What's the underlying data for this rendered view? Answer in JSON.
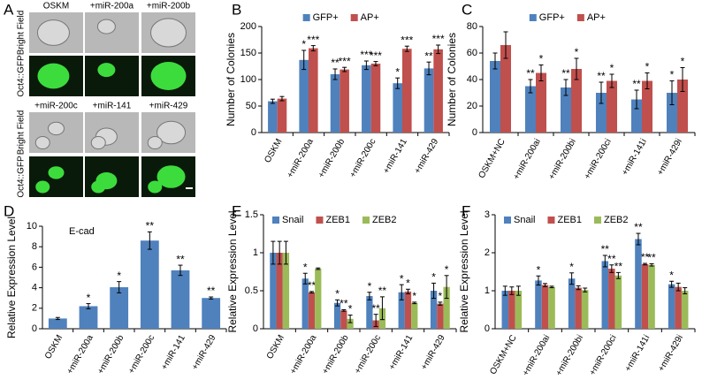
{
  "panel_a": {
    "panel": "A",
    "columns_top": [
      "OSKM",
      "+miR-200a",
      "+miR-200b"
    ],
    "columns_bottom": [
      "+miR-200c",
      "+miR-141",
      "+miR-429"
    ],
    "row_labels": [
      "Bright Field",
      "Oct4::GFP",
      "Bright Field",
      "Oct4::GFP"
    ]
  },
  "chart_data": [
    {
      "type": "bar",
      "panel": "B",
      "ylabel": "Number of Colonies",
      "categories": [
        "OSKM",
        "+miR-200a",
        "+miR-200b",
        "+miR-200c",
        "+miR-141",
        "+miR-429"
      ],
      "series": [
        {
          "name": "GFP+",
          "color": "#4f81bd",
          "values": [
            59,
            137,
            110,
            127,
            93,
            121
          ],
          "errors": [
            4,
            18,
            10,
            8,
            10,
            12
          ],
          "significance": [
            null,
            "*",
            "**",
            "***",
            "*",
            "**"
          ]
        },
        {
          "name": "AP+",
          "color": "#c0504d",
          "values": [
            64,
            159,
            119,
            130,
            158,
            157
          ],
          "errors": [
            4,
            5,
            4,
            4,
            5,
            8
          ],
          "significance": [
            null,
            "***",
            "***",
            "***",
            "***",
            "***"
          ]
        }
      ],
      "ylim": [
        0,
        200
      ],
      "yticks": [
        0,
        50,
        100,
        150,
        200
      ],
      "legend": "top"
    },
    {
      "type": "bar",
      "panel": "C",
      "ylabel": "Number of Colonies",
      "categories": [
        "OSKM+NC",
        "+miR-200ai",
        "+miR-200bi",
        "+miR-200ci",
        "+miR-141i",
        "+miR-429i"
      ],
      "series": [
        {
          "name": "GFP+",
          "color": "#4f81bd",
          "values": [
            54,
            35,
            34,
            30,
            25,
            30
          ],
          "errors": [
            6,
            5,
            6,
            8,
            7,
            9
          ],
          "significance": [
            null,
            "**",
            "**",
            "**",
            "**",
            "*"
          ]
        },
        {
          "name": "AP+",
          "color": "#c0504d",
          "values": [
            66,
            45,
            48,
            39,
            39,
            40
          ],
          "errors": [
            10,
            6,
            8,
            5,
            6,
            9
          ],
          "significance": [
            null,
            "*",
            "*",
            "*",
            "*",
            "*"
          ]
        }
      ],
      "ylim": [
        0,
        80
      ],
      "yticks": [
        0,
        20,
        40,
        60,
        80
      ],
      "legend": "top"
    },
    {
      "type": "bar",
      "panel": "D",
      "ylabel": "Relative Expression Level",
      "categories": [
        "OSKM",
        "+miR-200a",
        "+miR-200b",
        "+miR-200c",
        "+miR-141",
        "+miR-429"
      ],
      "series": [
        {
          "name": "E-cad",
          "color": "#4f81bd",
          "values": [
            1,
            2.2,
            4.05,
            8.6,
            5.7,
            3.0
          ],
          "errors": [
            0.1,
            0.25,
            0.55,
            0.85,
            0.5,
            0.1
          ],
          "significance": [
            null,
            "*",
            "*",
            "**",
            "**",
            "**"
          ]
        }
      ],
      "ylim": [
        0,
        10
      ],
      "yticks": [
        0,
        2,
        4,
        6,
        8,
        10
      ],
      "legend": "top-left"
    },
    {
      "type": "bar",
      "panel": "E",
      "ylabel": "Relative Expression Level",
      "categories": [
        "OSKM",
        "+miR-200a",
        "+miR-200b",
        "+miR-200c",
        "+miR-141",
        "+miR-429"
      ],
      "series": [
        {
          "name": "Snail",
          "color": "#4f81bd",
          "values": [
            1,
            0.66,
            0.34,
            0.43,
            0.48,
            0.5
          ],
          "errors": [
            0.15,
            0.07,
            0.04,
            0.05,
            0.1,
            0.1
          ],
          "significance": [
            null,
            "*",
            "*",
            "*",
            "*",
            "*"
          ]
        },
        {
          "name": "ZEB1",
          "color": "#c0504d",
          "values": [
            1,
            0.48,
            0.24,
            0.11,
            0.49,
            0.33
          ],
          "errors": [
            0.15,
            0.01,
            0.01,
            0.08,
            0.03,
            0.02
          ],
          "significance": [
            null,
            "**",
            "**",
            "**",
            "*",
            "*"
          ]
        },
        {
          "name": "ZEB2",
          "color": "#9bbb59",
          "values": [
            1,
            0.79,
            0.13,
            0.27,
            0.34,
            0.55
          ],
          "errors": [
            0.15,
            0.01,
            0.05,
            0.15,
            0.01,
            0.15
          ],
          "significance": [
            null,
            null,
            "*",
            "**",
            "*",
            "*"
          ]
        }
      ],
      "ylim": [
        0,
        1.5
      ],
      "yticks": [
        0,
        0.5,
        1,
        1.5
      ],
      "legend": "top-left"
    },
    {
      "type": "bar",
      "panel": "F",
      "ylabel": "Relative Expression Level",
      "categories": [
        "OSKM+NC",
        "+miR-200ai",
        "+miR-200bi",
        "+miR-200ci",
        "+miR-141i",
        "+miR-429i"
      ],
      "series": [
        {
          "name": "Snail",
          "color": "#4f81bd",
          "values": [
            1,
            1.27,
            1.32,
            1.78,
            2.36,
            1.17
          ],
          "errors": [
            0.12,
            0.12,
            0.15,
            0.15,
            0.15,
            0.08
          ],
          "significance": [
            null,
            "*",
            "*",
            "**",
            "**",
            "*"
          ]
        },
        {
          "name": "ZEB1",
          "color": "#c0504d",
          "values": [
            1,
            1.15,
            1.08,
            1.58,
            1.7,
            1.1
          ],
          "errors": [
            0.1,
            0.04,
            0.05,
            0.1,
            0.02,
            0.1
          ],
          "significance": [
            null,
            null,
            null,
            "**",
            "**",
            null
          ]
        },
        {
          "name": "ZEB2",
          "color": "#9bbb59",
          "values": [
            1,
            1.1,
            1.02,
            1.4,
            1.68,
            1.0
          ],
          "errors": [
            0.12,
            0.02,
            0.05,
            0.08,
            0.03,
            0.08
          ],
          "significance": [
            null,
            null,
            null,
            "**",
            "**",
            null
          ]
        }
      ],
      "ylim": [
        0,
        3
      ],
      "yticks": [
        0,
        1,
        2,
        3
      ],
      "legend": "top-left"
    }
  ]
}
